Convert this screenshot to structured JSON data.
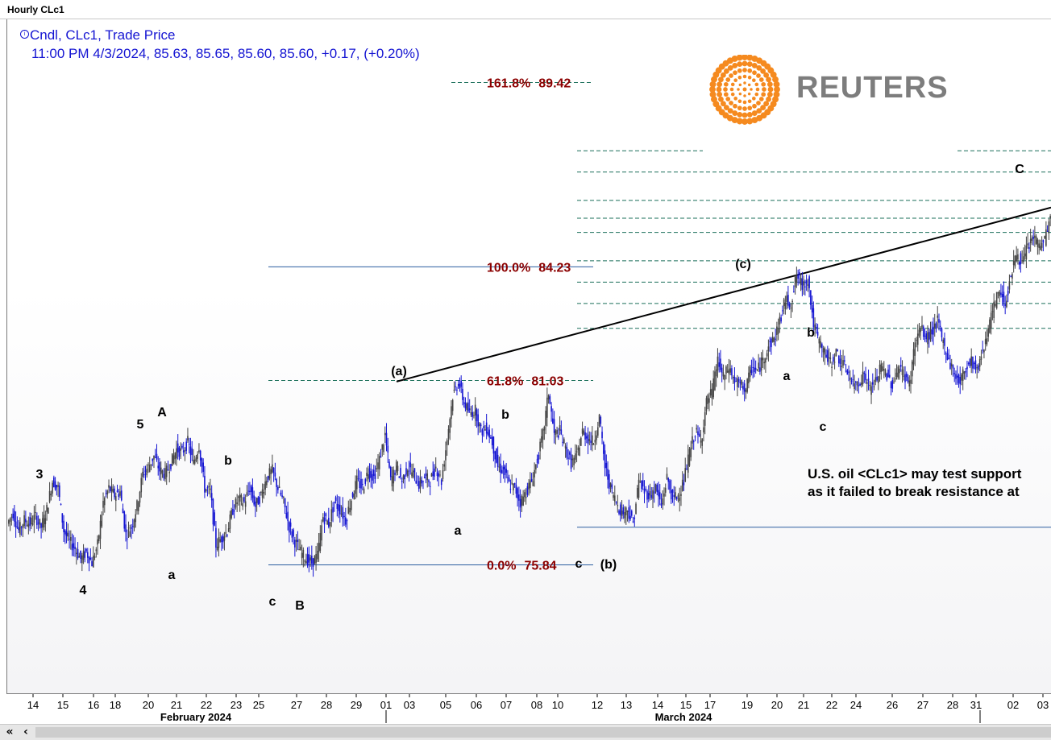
{
  "window": {
    "title": "Hourly CLc1"
  },
  "legend": {
    "line1": "Cndl, CLc1, Trade Price",
    "line2": "11:00 PM 4/3/2024, 85.63, 85.65, 85.60, 85.60, +0.17, (+0.20%)"
  },
  "logo": {
    "text": "REUTERS",
    "color": "#f58a1f"
  },
  "annotation": {
    "line1": "U.S. oil <CLc1> may test support",
    "line2": "as it failed to break resistance at"
  },
  "colors": {
    "candles": "#1414d2",
    "fib_label": "#8b0000",
    "fib_line": "#1a6f5a",
    "axis": "#000000"
  },
  "chart_data": {
    "type": "candlestick",
    "title": "Hourly CLc1",
    "ylim": [
      72.2,
      91.2
    ],
    "x_tick_labels": [
      "14",
      "15",
      "16",
      "18",
      "20",
      "21",
      "22",
      "23",
      "25",
      "27",
      "28",
      "29",
      "01",
      "03",
      "05",
      "06",
      "07",
      "08",
      "10",
      "12",
      "13",
      "14",
      "15",
      "17",
      "19",
      "20",
      "21",
      "22",
      "24",
      "26",
      "27",
      "28",
      "31",
      "02",
      "03"
    ],
    "month_labels": [
      "February 2024",
      "March 2024"
    ],
    "fibonacci_levels": [
      {
        "label": "161.8%",
        "value": "89.42",
        "y": 89.42
      },
      {
        "label": "100.0%",
        "value": "84.23",
        "y": 84.23
      },
      {
        "label": "61.8%",
        "value": "81.03",
        "y": 81.03
      },
      {
        "label": "0.0%",
        "value": "75.84",
        "y": 75.84
      }
    ],
    "wave_labels": [
      "3",
      "4",
      "5",
      "A",
      "a",
      "b",
      "c",
      "B",
      "(a)",
      "a",
      "b",
      "c",
      "(b)",
      "(c)",
      "a",
      "b",
      "c",
      "C"
    ],
    "price_path": [
      [
        0,
        77.0
      ],
      [
        2,
        77.3
      ],
      [
        4,
        76.8
      ],
      [
        6,
        77.1
      ],
      [
        8,
        77.0
      ],
      [
        10,
        77.2
      ],
      [
        12,
        76.9
      ],
      [
        14,
        77.4
      ],
      [
        16,
        78.2
      ],
      [
        18,
        78.0
      ],
      [
        20,
        76.8
      ],
      [
        22,
        76.5
      ],
      [
        24,
        76.3
      ],
      [
        26,
        76.0
      ],
      [
        28,
        76.2
      ],
      [
        30,
        75.9
      ],
      [
        32,
        76.4
      ],
      [
        34,
        77.6
      ],
      [
        36,
        78.0
      ],
      [
        38,
        77.8
      ],
      [
        40,
        77.9
      ],
      [
        42,
        76.7
      ],
      [
        44,
        76.9
      ],
      [
        46,
        77.5
      ],
      [
        48,
        78.4
      ],
      [
        50,
        78.6
      ],
      [
        52,
        78.9
      ],
      [
        54,
        78.5
      ],
      [
        56,
        78.4
      ],
      [
        58,
        78.7
      ],
      [
        60,
        79.1
      ],
      [
        62,
        79.0
      ],
      [
        64,
        79.3
      ],
      [
        66,
        78.7
      ],
      [
        68,
        79.2
      ],
      [
        70,
        78.0
      ],
      [
        72,
        77.9
      ],
      [
        74,
        76.4
      ],
      [
        76,
        76.6
      ],
      [
        78,
        76.8
      ],
      [
        80,
        77.4
      ],
      [
        82,
        77.7
      ],
      [
        84,
        77.6
      ],
      [
        86,
        78.0
      ],
      [
        88,
        77.5
      ],
      [
        90,
        77.8
      ],
      [
        92,
        78.3
      ],
      [
        94,
        78.5
      ],
      [
        96,
        78.0
      ],
      [
        98,
        77.6
      ],
      [
        100,
        76.9
      ],
      [
        102,
        76.5
      ],
      [
        104,
        76.2
      ],
      [
        106,
        76.0
      ],
      [
        108,
        75.9
      ],
      [
        110,
        76.1
      ],
      [
        112,
        77.2
      ],
      [
        114,
        77.0
      ],
      [
        116,
        77.6
      ],
      [
        118,
        77.4
      ],
      [
        120,
        77.1
      ],
      [
        122,
        77.7
      ],
      [
        124,
        78.2
      ],
      [
        126,
        78.0
      ],
      [
        128,
        78.5
      ],
      [
        130,
        78.3
      ],
      [
        132,
        78.8
      ],
      [
        134,
        79.5
      ],
      [
        136,
        78.2
      ],
      [
        138,
        78.6
      ],
      [
        140,
        78.2
      ],
      [
        142,
        78.6
      ],
      [
        144,
        78.4
      ],
      [
        146,
        78.1
      ],
      [
        148,
        78.3
      ],
      [
        150,
        78.2
      ],
      [
        152,
        78.6
      ],
      [
        154,
        78.2
      ],
      [
        156,
        79.4
      ],
      [
        158,
        80.6
      ],
      [
        160,
        81.0
      ],
      [
        162,
        80.4
      ],
      [
        164,
        80.1
      ],
      [
        166,
        80.2
      ],
      [
        168,
        79.6
      ],
      [
        170,
        79.7
      ],
      [
        172,
        79.3
      ],
      [
        174,
        78.6
      ],
      [
        176,
        78.5
      ],
      [
        178,
        78.1
      ],
      [
        180,
        78.0
      ],
      [
        182,
        77.6
      ],
      [
        184,
        77.9
      ],
      [
        186,
        78.2
      ],
      [
        188,
        78.8
      ],
      [
        190,
        79.5
      ],
      [
        192,
        80.7
      ],
      [
        194,
        79.5
      ],
      [
        196,
        79.6
      ],
      [
        198,
        79.1
      ],
      [
        200,
        78.7
      ],
      [
        202,
        78.9
      ],
      [
        204,
        79.6
      ],
      [
        206,
        79.4
      ],
      [
        208,
        79.3
      ],
      [
        210,
        80.0
      ],
      [
        212,
        78.6
      ],
      [
        214,
        78.0
      ],
      [
        216,
        77.6
      ],
      [
        218,
        77.3
      ],
      [
        220,
        77.4
      ],
      [
        222,
        77.0
      ],
      [
        224,
        78.2
      ],
      [
        226,
        77.9
      ],
      [
        228,
        77.8
      ],
      [
        230,
        78.0
      ],
      [
        232,
        77.5
      ],
      [
        234,
        78.3
      ],
      [
        236,
        77.7
      ],
      [
        238,
        77.8
      ],
      [
        240,
        78.2
      ],
      [
        242,
        79.0
      ],
      [
        244,
        79.6
      ],
      [
        246,
        79.3
      ],
      [
        248,
        80.4
      ],
      [
        250,
        80.7
      ],
      [
        252,
        81.6
      ],
      [
        254,
        81.1
      ],
      [
        256,
        81.4
      ],
      [
        258,
        81.0
      ],
      [
        260,
        80.9
      ],
      [
        262,
        80.8
      ],
      [
        264,
        81.4
      ],
      [
        266,
        81.3
      ],
      [
        268,
        81.6
      ],
      [
        270,
        82.0
      ],
      [
        272,
        82.2
      ],
      [
        274,
        82.7
      ],
      [
        276,
        83.3
      ],
      [
        278,
        83.2
      ],
      [
        280,
        84.0
      ],
      [
        282,
        83.7
      ],
      [
        284,
        83.9
      ],
      [
        286,
        82.6
      ],
      [
        288,
        82.1
      ],
      [
        290,
        81.8
      ],
      [
        292,
        81.5
      ],
      [
        294,
        81.8
      ],
      [
        296,
        81.5
      ],
      [
        298,
        81.3
      ],
      [
        300,
        80.9
      ],
      [
        302,
        81.0
      ],
      [
        304,
        81.2
      ],
      [
        306,
        80.8
      ],
      [
        308,
        81.0
      ],
      [
        310,
        81.4
      ],
      [
        312,
        81.2
      ],
      [
        314,
        80.9
      ],
      [
        316,
        81.4
      ],
      [
        318,
        81.2
      ],
      [
        320,
        80.9
      ],
      [
        322,
        82.1
      ],
      [
        324,
        82.5
      ],
      [
        326,
        82.2
      ],
      [
        328,
        82.4
      ],
      [
        330,
        82.7
      ],
      [
        332,
        82.1
      ],
      [
        334,
        81.6
      ],
      [
        336,
        81.2
      ],
      [
        338,
        81.0
      ],
      [
        340,
        81.4
      ],
      [
        342,
        81.6
      ],
      [
        344,
        81.3
      ],
      [
        346,
        81.9
      ],
      [
        348,
        82.5
      ],
      [
        350,
        83.1
      ],
      [
        352,
        83.6
      ],
      [
        354,
        83.2
      ],
      [
        356,
        84.0
      ],
      [
        358,
        84.6
      ],
      [
        360,
        84.3
      ],
      [
        362,
        84.8
      ],
      [
        364,
        85.1
      ],
      [
        366,
        84.8
      ],
      [
        368,
        85.0
      ],
      [
        370,
        85.6
      ]
    ]
  }
}
